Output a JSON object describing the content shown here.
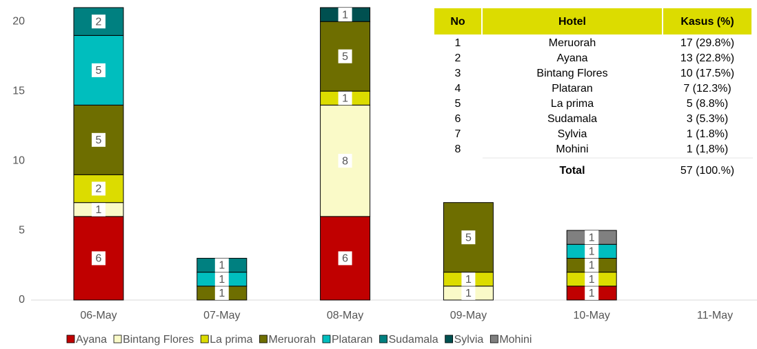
{
  "chart_data": {
    "type": "stacked_bar",
    "categories": [
      "06-May",
      "07-May",
      "08-May",
      "09-May",
      "10-May",
      "11-May"
    ],
    "series": [
      {
        "name": "Ayana",
        "color": "#c00000",
        "values": [
          6,
          null,
          6,
          null,
          1,
          null
        ]
      },
      {
        "name": "Bintang Flores",
        "color": "#fafac8",
        "values": [
          1,
          null,
          8,
          1,
          null,
          null
        ]
      },
      {
        "name": "La prima",
        "color": "#dcdc00",
        "values": [
          2,
          null,
          1,
          1,
          1,
          null
        ]
      },
      {
        "name": "Meruorah",
        "color": "#6e6e00",
        "values": [
          5,
          1,
          5,
          5,
          1,
          null
        ]
      },
      {
        "name": "Plataran",
        "color": "#00bebe",
        "values": [
          5,
          1,
          null,
          null,
          1,
          null
        ]
      },
      {
        "name": "Sudamala",
        "color": "#008080",
        "values": [
          2,
          1,
          null,
          null,
          null,
          null
        ]
      },
      {
        "name": "Sylvia",
        "color": "#005050",
        "values": [
          null,
          null,
          1,
          null,
          null,
          null
        ]
      },
      {
        "name": "Mohini",
        "color": "#808080",
        "values": [
          null,
          null,
          null,
          null,
          1,
          null
        ]
      }
    ],
    "ylim": [
      0,
      21
    ],
    "yticks": [
      0,
      5,
      10,
      15,
      20
    ],
    "legend": "bottom",
    "data_labels": true
  },
  "table": {
    "header": [
      "No",
      "Hotel",
      "Kasus (%)"
    ],
    "rows": [
      [
        "1",
        "Meruorah",
        "17 (29.8%)"
      ],
      [
        "2",
        "Ayana",
        "13 (22.8%)"
      ],
      [
        "3",
        "Bintang Flores",
        "10 (17.5%)"
      ],
      [
        "4",
        "Plataran",
        "7 (12.3%)"
      ],
      [
        "5",
        "La prima",
        "5 (8.8%)"
      ],
      [
        "6",
        "Sudamala",
        "3 (5.3%)"
      ],
      [
        "7",
        "Sylvia",
        "1 (1.8%)"
      ],
      [
        "8",
        "Mohini",
        "1 (1,8%)"
      ]
    ],
    "total": {
      "label": "Total",
      "value": "57 (100.%)"
    }
  }
}
